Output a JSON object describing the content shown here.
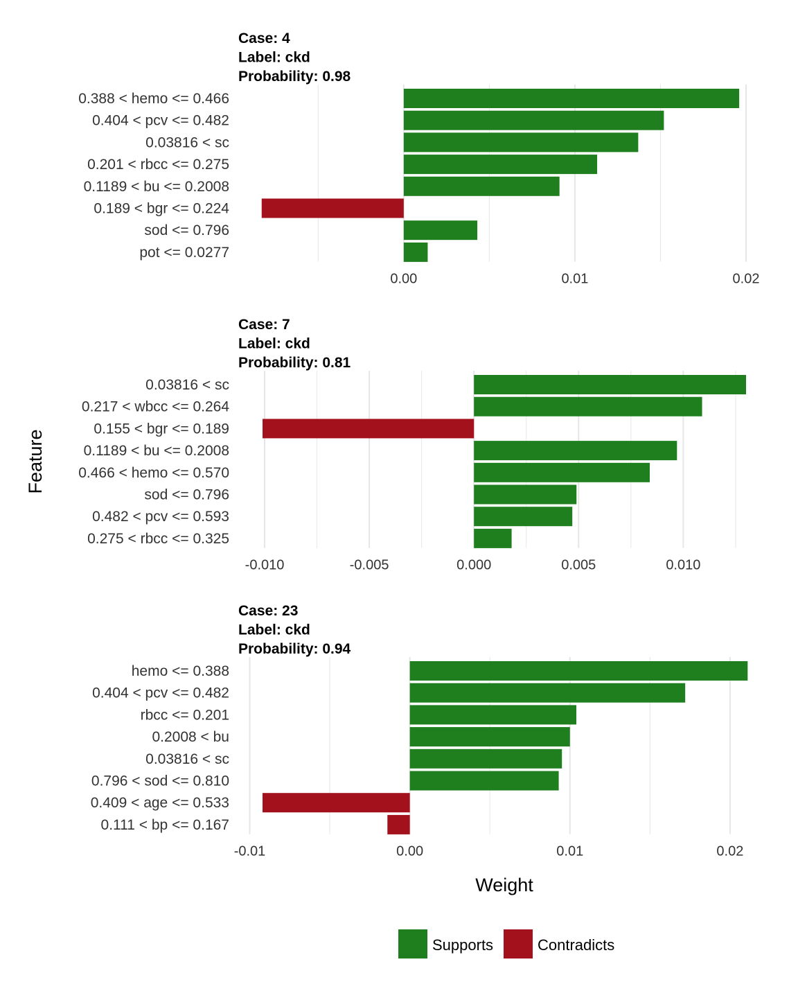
{
  "chart_data": {
    "type": "bar",
    "xlabel": "Weight",
    "ylabel": "Feature",
    "colors": {
      "supports": "#1f7f1f",
      "contradicts": "#a3121c",
      "grid": "#e6e6e6"
    },
    "legend": {
      "position": "bottom",
      "items": [
        {
          "key": "supports",
          "label": "Supports"
        },
        {
          "key": "contradicts",
          "label": "Contradicts"
        }
      ]
    },
    "panels": [
      {
        "case_line": "Case: 4",
        "label_line": "Label: ckd",
        "prob_line": "Probability: 0.98",
        "xlim": [
          -0.00825,
          0.02
        ],
        "major_ticks": [
          0.0,
          0.01,
          0.02
        ],
        "tick_labels": [
          "0.00",
          "0.01",
          "0.02"
        ],
        "minor_ticks": [
          -0.005,
          0.005,
          0.015
        ],
        "features": [
          "0.388 < hemo <= 0.466",
          "0.404 < pcv <= 0.482",
          "0.03816 < sc",
          "0.201 < rbcc <= 0.275",
          "0.1189 < bu <= 0.2008",
          "0.189 < bgr <= 0.224",
          "sod <= 0.796",
          "pot <= 0.0277"
        ],
        "values": [
          0.0196,
          0.0152,
          0.0137,
          0.0113,
          0.0091,
          -0.0083,
          0.0043,
          0.0014
        ]
      },
      {
        "case_line": "Case: 7",
        "label_line": "Label: ckd",
        "prob_line": "Probability: 0.81",
        "xlim": [
          -0.0101,
          0.013
        ],
        "major_ticks": [
          -0.01,
          -0.005,
          0.0,
          0.005,
          0.01
        ],
        "tick_labels": [
          "-0.010",
          "-0.005",
          "0.000",
          "0.005",
          "0.010"
        ],
        "minor_ticks": [
          -0.0075,
          -0.0025,
          0.0025,
          0.0075,
          0.0125
        ],
        "features": [
          "0.03816 < sc",
          "0.217 < wbcc <= 0.264",
          "0.155 < bgr <= 0.189",
          "0.1189 < bu <= 0.2008",
          "0.466 < hemo <= 0.570",
          "sod <= 0.796",
          "0.482 < pcv <= 0.593",
          "0.275 < rbcc <= 0.325"
        ],
        "values": [
          0.013,
          0.0109,
          -0.0101,
          0.0097,
          0.0084,
          0.0049,
          0.0047,
          0.0018
        ]
      },
      {
        "case_line": "Case: 23",
        "label_line": "Label: ckd",
        "prob_line": "Probability: 0.94",
        "xlim": [
          -0.0092,
          0.021
        ],
        "major_ticks": [
          -0.01,
          0.0,
          0.01,
          0.02
        ],
        "tick_labels": [
          "-0.01",
          "0.00",
          "0.01",
          "0.02"
        ],
        "minor_ticks": [
          -0.005,
          0.005,
          0.015
        ],
        "features": [
          "hemo <= 0.388",
          "0.404 < pcv <= 0.482",
          "rbcc <= 0.201",
          "0.2008 < bu",
          "0.03816 < sc",
          "0.796 < sod <= 0.810",
          "0.409 < age <= 0.533",
          "0.111 < bp <= 0.167"
        ],
        "values": [
          0.0211,
          0.0172,
          0.0104,
          0.01,
          0.0095,
          0.0093,
          -0.0092,
          -0.0014
        ]
      }
    ]
  }
}
